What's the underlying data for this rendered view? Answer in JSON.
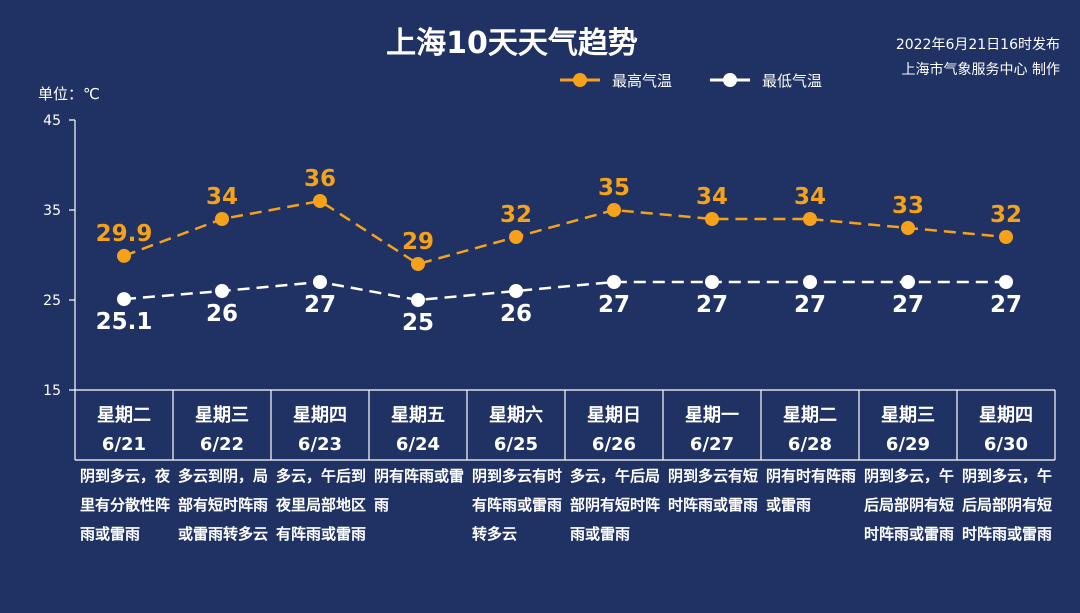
{
  "header": {
    "title": "上海10天天气趋势",
    "publish_line1": "2022年6月21日16时发布",
    "publish_line2": "上海市气象服务中心 制作",
    "unit_label": "单位：℃"
  },
  "colors": {
    "background": "#1f3263",
    "high": "#f5a21a",
    "low": "#ffffff"
  },
  "chart_data": {
    "type": "line",
    "title": "上海10天天气趋势",
    "ylabel": "单位：℃",
    "ylim": [
      15,
      45
    ],
    "yticks": [
      "15",
      "25",
      "35",
      "45"
    ],
    "legend_position": "top-right",
    "categories": [
      "6/21",
      "6/22",
      "6/23",
      "6/24",
      "6/25",
      "6/26",
      "6/27",
      "6/28",
      "6/29",
      "6/30"
    ],
    "weekdays": [
      "星期二",
      "星期三",
      "星期四",
      "星期五",
      "星期六",
      "星期日",
      "星期一",
      "星期二",
      "星期三",
      "星期四"
    ],
    "series": [
      {
        "name": "最高气温",
        "values": [
          29.9,
          34,
          36,
          29,
          32,
          35,
          34,
          34,
          33,
          32
        ],
        "labels": [
          "29.9",
          "34",
          "36",
          "29",
          "32",
          "35",
          "34",
          "34",
          "33",
          "32"
        ]
      },
      {
        "name": "最低气温",
        "values": [
          25.1,
          26,
          27,
          25,
          26,
          27,
          27,
          27,
          27,
          27
        ],
        "labels": [
          "25.1",
          "26",
          "27",
          "25",
          "26",
          "27",
          "27",
          "27",
          "27",
          "27"
        ]
      }
    ],
    "descriptions": [
      "阴到多云，夜里有分散性阵雨或雷雨",
      "多云到阴，局部有短时阵雨或雷雨转多云",
      "多云，午后到夜里局部地区有阵雨或雷雨",
      "阴有阵雨或雷雨",
      "阴到多云有时有阵雨或雷雨转多云",
      "多云，午后局部阴有短时阵雨或雷雨",
      "阴到多云有短时阵雨或雷雨",
      "阴有时有阵雨或雷雨",
      "阴到多云，午后局部阴有短时阵雨或雷雨",
      "阴到多云，午后局部阴有短时阵雨或雷雨"
    ]
  }
}
